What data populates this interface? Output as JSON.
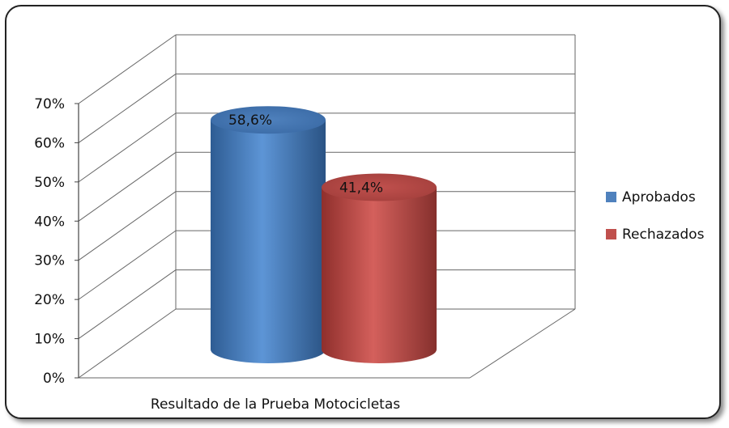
{
  "chart_data": {
    "type": "bar",
    "style": "3d-cylinder",
    "categories": [
      "Resultado de la Prueba Motocicletas"
    ],
    "series": [
      {
        "name": "Aprobados",
        "values": [
          58.6
        ],
        "label": "58,6%",
        "color": "#4F81BD"
      },
      {
        "name": "Rechazados",
        "values": [
          41.4
        ],
        "label": "41,4%",
        "color": "#C0504D"
      }
    ],
    "ylim": [
      0,
      70
    ],
    "yticks": [
      {
        "value": 0,
        "label": "0%"
      },
      {
        "value": 10,
        "label": "10%"
      },
      {
        "value": 20,
        "label": "20%"
      },
      {
        "value": 30,
        "label": "30%"
      },
      {
        "value": 40,
        "label": "40%"
      },
      {
        "value": 50,
        "label": "50%"
      },
      {
        "value": 60,
        "label": "60%"
      },
      {
        "value": 70,
        "label": "70%"
      }
    ],
    "grid": true,
    "legend": "right"
  }
}
